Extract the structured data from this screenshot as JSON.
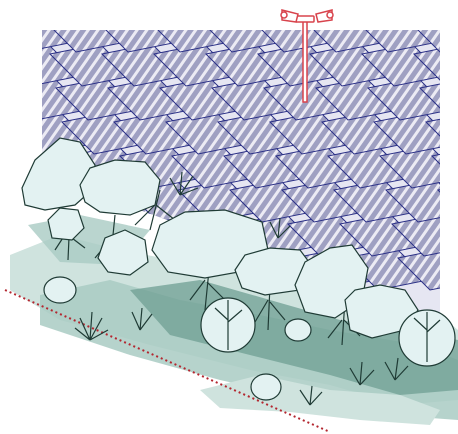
{
  "illustration": {
    "subject": "solar-panel-field-with-vegetation-screen-and-security-camera",
    "colors": {
      "panel_frame": "#e6e6f2",
      "panel_cell": "#9fa0c2",
      "panel_stripe": "#ecebf4",
      "panel_outline": "#2a2f86",
      "ground_light": "#cfe3de",
      "ground_mid": "#a9cbc3",
      "ground_dark": "#6f9f93",
      "tree_fill": "#e3f2f2",
      "tree_outline": "#1f3b35",
      "camera": "#d8434c",
      "fence_line": "#b3262f"
    },
    "icons": [
      "security-camera-icon",
      "tree-icon",
      "shrub-icon",
      "bush-icon"
    ]
  }
}
